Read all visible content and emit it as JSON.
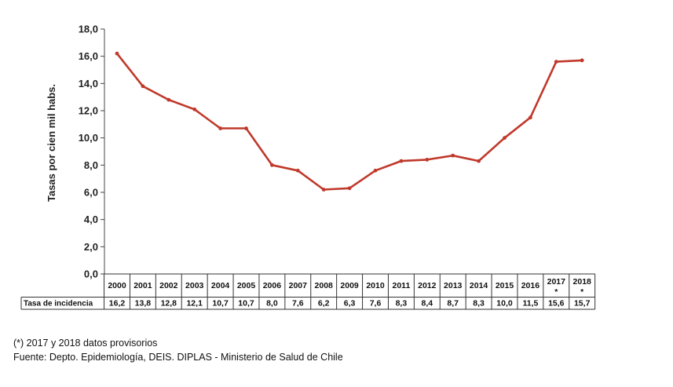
{
  "chart_data": {
    "type": "line",
    "ylabel": "Tasas por cien mil habs.",
    "ylim": [
      0,
      18
    ],
    "yticks": [
      "0,0",
      "2,0",
      "4,0",
      "6,0",
      "8,0",
      "10,0",
      "12,0",
      "14,0",
      "16,0",
      "18,0"
    ],
    "yticks_values": [
      0,
      2,
      4,
      6,
      8,
      10,
      12,
      14,
      16,
      18
    ],
    "categories": [
      "2000",
      "2001",
      "2002",
      "2003",
      "2004",
      "2005",
      "2006",
      "2007",
      "2008",
      "2009",
      "2010",
      "2011",
      "2012",
      "2013",
      "2014",
      "2015",
      "2016",
      "2017",
      "2018"
    ],
    "category_marks": [
      "",
      "",
      "",
      "",
      "",
      "",
      "",
      "",
      "",
      "",
      "",
      "",
      "",
      "",
      "",
      "",
      "",
      "*",
      "*"
    ],
    "values": [
      16.2,
      13.8,
      12.8,
      12.1,
      10.7,
      10.7,
      8.0,
      7.6,
      6.2,
      6.3,
      7.6,
      8.3,
      8.4,
      8.7,
      8.3,
      10.0,
      11.5,
      15.6,
      15.7
    ],
    "table_row_label": "Tasa de incidencia",
    "table_values": [
      "16,2",
      "13,8",
      "12,8",
      "12,1",
      "10,7",
      "10,7",
      "8,0",
      "7,6",
      "6,2",
      "6,3",
      "7,6",
      "8,3",
      "8,4",
      "8,7",
      "8,3",
      "10,0",
      "11,5",
      "15,6",
      "15,7"
    ],
    "line_color": "#c0392b",
    "grid": false
  },
  "footnotes": {
    "note": "(*) 2017 y 2018   datos provisorios",
    "source": "Fuente: Depto. Epidemiología, DEIS. DIPLAS - Ministerio de Salud de Chile"
  }
}
